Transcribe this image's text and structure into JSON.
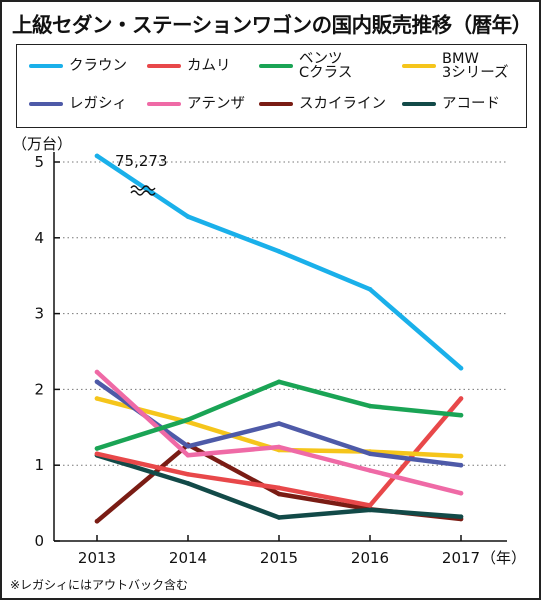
{
  "title": "上級セダン・ステーションワゴンの国内販売推移（暦年）",
  "y_unit": "（万台）",
  "x_unit": "（年）",
  "break_annotation": "75,273",
  "footnote": "※レガシィにはアウトバック含む",
  "chart_data": {
    "type": "line",
    "title": "上級セダン・ステーションワゴンの国内販売推移（暦年）",
    "xlabel": "（年）",
    "ylabel": "（万台）",
    "categories": [
      "2013",
      "2014",
      "2015",
      "2016",
      "2017"
    ],
    "ylim": [
      0,
      5
    ],
    "yticks": [
      "0",
      "1",
      "2",
      "3",
      "4",
      "5"
    ],
    "grid": "horizontal dotted",
    "legend_position": "top",
    "series": [
      {
        "name": "クラウン",
        "color": "#1ab0ea",
        "values": [
          7.5273,
          4.28,
          3.82,
          3.32,
          2.28
        ]
      },
      {
        "name": "カムリ",
        "color": "#e8484a",
        "values": [
          1.15,
          0.88,
          0.7,
          0.47,
          1.88
        ]
      },
      {
        "name": "ベンツ\nCクラス",
        "color": "#1aa455",
        "values": [
          1.22,
          1.6,
          2.1,
          1.78,
          1.66
        ]
      },
      {
        "name": "BMW\n3シリーズ",
        "color": "#f5c51b",
        "values": [
          1.88,
          1.57,
          1.2,
          1.18,
          1.12
        ]
      },
      {
        "name": "レガシィ",
        "color": "#4e5aa8",
        "values": [
          2.1,
          1.25,
          1.55,
          1.15,
          1.0
        ]
      },
      {
        "name": "アテンザ",
        "color": "#ef6aa6",
        "values": [
          2.23,
          1.13,
          1.24,
          0.93,
          0.63
        ]
      },
      {
        "name": "スカイライン",
        "color": "#7a1c14",
        "values": [
          0.26,
          1.27,
          0.62,
          0.42,
          0.29
        ]
      },
      {
        "name": "アコード",
        "color": "#124a48",
        "values": [
          1.13,
          0.76,
          0.31,
          0.41,
          0.32
        ]
      }
    ]
  }
}
